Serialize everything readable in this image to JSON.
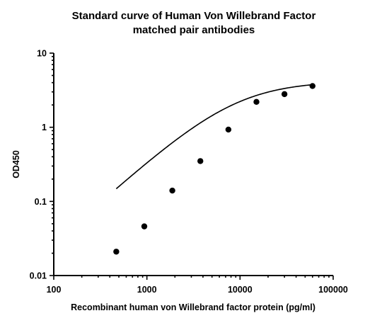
{
  "chart_data": {
    "type": "scatter",
    "title_line1": "Standard curve of Human Von Willebrand Factor",
    "title_line2": "matched pair antibodies",
    "xlabel": "Recombinant human von Willebrand factor protein (pg/ml)",
    "ylabel": "OD450",
    "x_scale": "log",
    "y_scale": "log",
    "xlim": [
      100,
      100000
    ],
    "ylim": [
      0.01,
      10
    ],
    "x_ticks": [
      "100",
      "1000",
      "10000",
      "100000"
    ],
    "y_ticks": [
      "0.01",
      "0.1",
      "1",
      "10"
    ],
    "grid": false,
    "points": [
      {
        "x": 469,
        "y": 0.021
      },
      {
        "x": 938,
        "y": 0.046
      },
      {
        "x": 1875,
        "y": 0.14
      },
      {
        "x": 3750,
        "y": 0.35
      },
      {
        "x": 7500,
        "y": 0.93
      },
      {
        "x": 15000,
        "y": 2.2
      },
      {
        "x": 30000,
        "y": 2.8
      },
      {
        "x": 60000,
        "y": 3.6
      }
    ],
    "fit": {
      "bottom": 0.0,
      "top": 4.2,
      "ec50": 9000,
      "hill": 1.12
    }
  }
}
